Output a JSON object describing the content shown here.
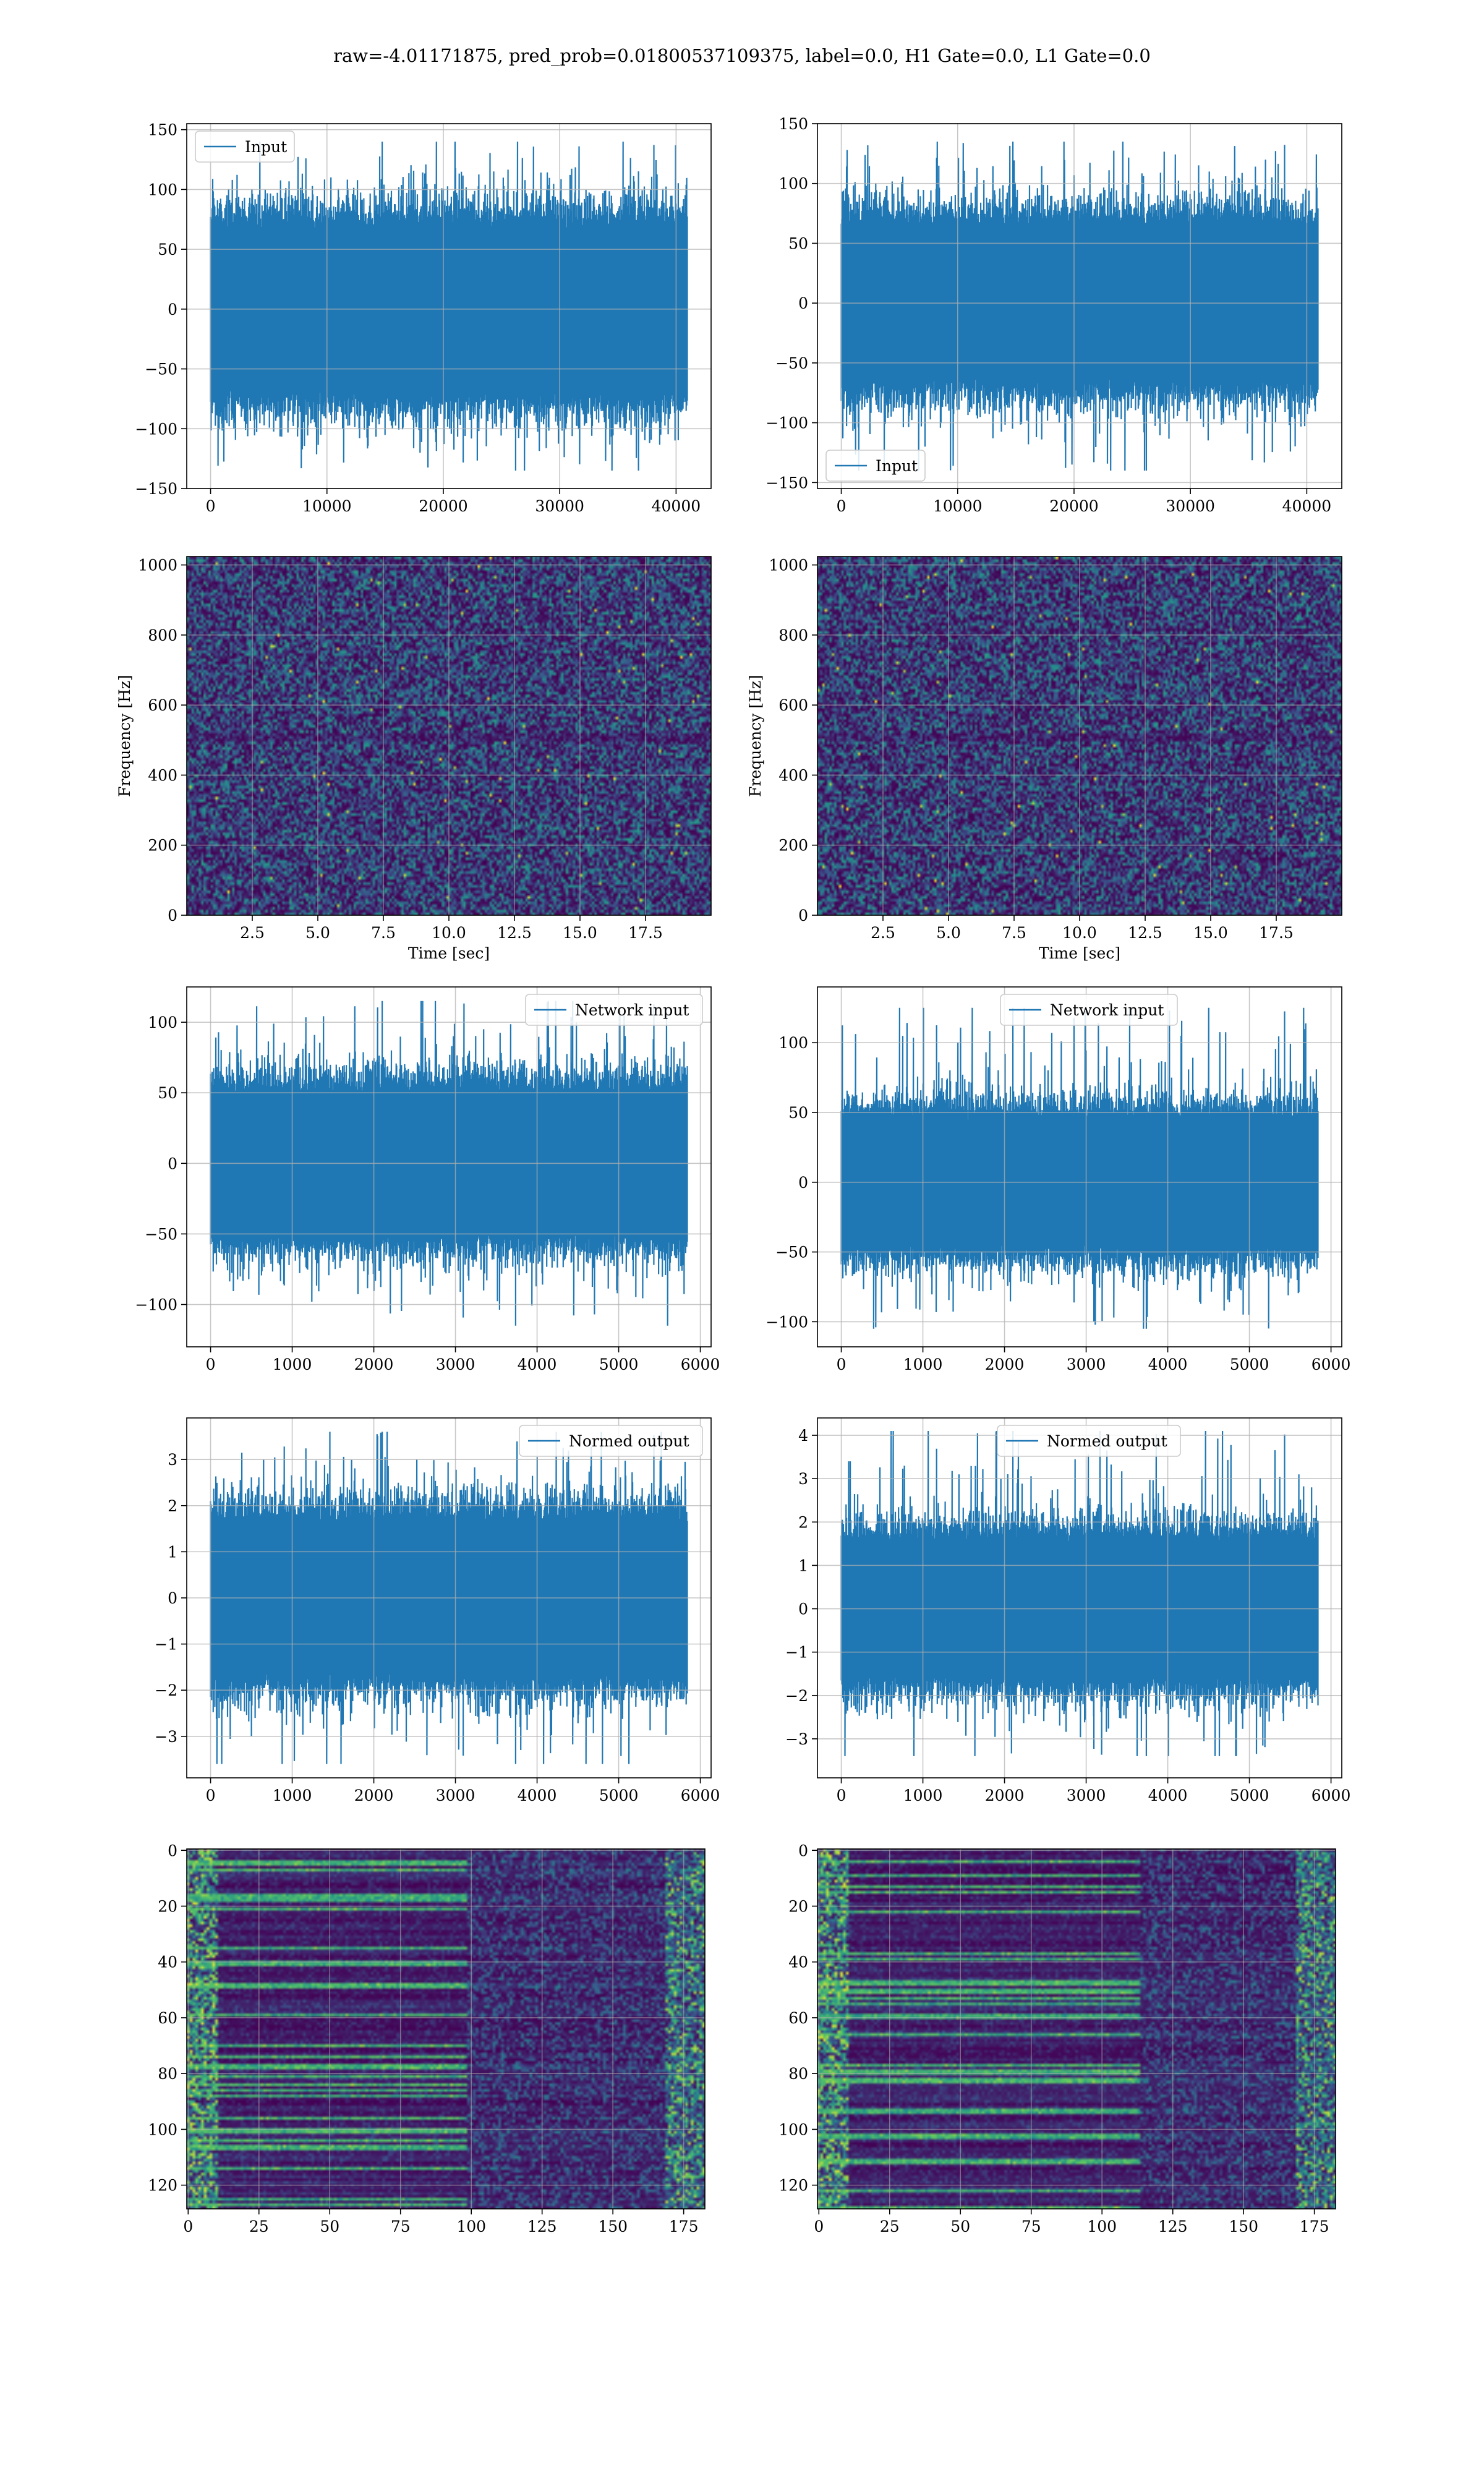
{
  "suptitle": "raw=-4.01171875, pred_prob=0.01800537109375, label=0.0, H1 Gate=0.0, L1 Gate=0.0",
  "colors": {
    "line": "#1f77b4",
    "grid": "#b0b0b0",
    "viridis_low": "#440154",
    "viridis_mid": "#3b528b",
    "viridis_teal": "#21918c",
    "viridis_green": "#5ec962",
    "viridis_high": "#fde725"
  },
  "chart_data": [
    {
      "id": "input-left",
      "type": "line",
      "title": "",
      "xlabel": "",
      "ylabel": "",
      "xlim": [
        -2048,
        43008
      ],
      "ylim": [
        -150,
        155
      ],
      "xticks": [
        0,
        10000,
        20000,
        30000,
        40000
      ],
      "xticklabels": [
        "0",
        "10000",
        "20000",
        "30000",
        "40000"
      ],
      "yticks": [
        -150,
        -100,
        -50,
        0,
        50,
        100,
        150
      ],
      "yticklabels": [
        "−150",
        "−100",
        "−50",
        "0",
        "50",
        "100",
        "150"
      ],
      "grid": true,
      "legend": "upper left",
      "series": [
        {
          "name": "Input",
          "n": 40960,
          "x_range": [
            0,
            40960
          ],
          "envelope_typical": [
            -75,
            75
          ],
          "peaks": [
            -135,
            140
          ]
        }
      ]
    },
    {
      "id": "input-right",
      "type": "line",
      "title": "",
      "xlabel": "",
      "ylabel": "",
      "xlim": [
        -2048,
        43008
      ],
      "ylim": [
        -155,
        150
      ],
      "xticks": [
        0,
        10000,
        20000,
        30000,
        40000
      ],
      "xticklabels": [
        "0",
        "10000",
        "20000",
        "30000",
        "40000"
      ],
      "yticks": [
        -150,
        -100,
        -50,
        0,
        50,
        100,
        150
      ],
      "yticklabels": [
        "−150",
        "−100",
        "−50",
        "0",
        "50",
        "100",
        "150"
      ],
      "grid": true,
      "legend": "lower left",
      "series": [
        {
          "name": "Input",
          "n": 40960,
          "x_range": [
            0,
            40960
          ],
          "envelope_typical": [
            -70,
            70
          ],
          "peaks": [
            -140,
            135
          ]
        }
      ]
    },
    {
      "id": "spectrogram-left",
      "type": "heatmap",
      "title": "",
      "xlabel": "Time [sec]",
      "ylabel": "Frequency [Hz]",
      "xlim": [
        0,
        20
      ],
      "ylim": [
        0,
        1024
      ],
      "xticks": [
        2.5,
        5.0,
        7.5,
        10.0,
        12.5,
        15.0,
        17.5
      ],
      "xticklabels": [
        "2.5",
        "5.0",
        "7.5",
        "10.0",
        "12.5",
        "15.0",
        "17.5"
      ],
      "yticks": [
        0,
        200,
        400,
        600,
        800,
        1000
      ],
      "yticklabels": [
        "0",
        "200",
        "400",
        "600",
        "800",
        "1000"
      ],
      "grid": true,
      "colormap": "viridis"
    },
    {
      "id": "spectrogram-right",
      "type": "heatmap",
      "title": "",
      "xlabel": "Time [sec]",
      "ylabel": "Frequency [Hz]",
      "xlim": [
        0,
        20
      ],
      "ylim": [
        0,
        1024
      ],
      "xticks": [
        2.5,
        5.0,
        7.5,
        10.0,
        12.5,
        15.0,
        17.5
      ],
      "xticklabels": [
        "2.5",
        "5.0",
        "7.5",
        "10.0",
        "12.5",
        "15.0",
        "17.5"
      ],
      "yticks": [
        0,
        200,
        400,
        600,
        800,
        1000
      ],
      "yticklabels": [
        "0",
        "200",
        "400",
        "600",
        "800",
        "1000"
      ],
      "grid": true,
      "colormap": "viridis"
    },
    {
      "id": "network-input-left",
      "type": "line",
      "title": "",
      "xlabel": "",
      "ylabel": "",
      "xlim": [
        -292,
        6132
      ],
      "ylim": [
        -130,
        125
      ],
      "xticks": [
        0,
        1000,
        2000,
        3000,
        4000,
        5000,
        6000
      ],
      "xticklabels": [
        "0",
        "1000",
        "2000",
        "3000",
        "4000",
        "5000",
        "6000"
      ],
      "yticks": [
        -100,
        -50,
        0,
        50,
        100
      ],
      "yticklabels": [
        "−100",
        "−50",
        "0",
        "50",
        "100"
      ],
      "grid": true,
      "legend": "upper right",
      "series": [
        {
          "name": "Network input",
          "n": 5840,
          "x_range": [
            0,
            5840
          ],
          "envelope_typical": [
            -55,
            55
          ],
          "peaks": [
            -115,
            115
          ]
        }
      ]
    },
    {
      "id": "network-input-right",
      "type": "line",
      "title": "",
      "xlabel": "",
      "ylabel": "",
      "xlim": [
        -292,
        6132
      ],
      "ylim": [
        -118,
        140
      ],
      "xticks": [
        0,
        1000,
        2000,
        3000,
        4000,
        5000,
        6000
      ],
      "xticklabels": [
        "0",
        "1000",
        "2000",
        "3000",
        "4000",
        "5000",
        "6000"
      ],
      "yticks": [
        -100,
        -50,
        0,
        50,
        100
      ],
      "yticklabels": [
        "−100",
        "−50",
        "0",
        "50",
        "100"
      ],
      "grid": true,
      "legend": "upper center",
      "series": [
        {
          "name": "Network input",
          "n": 5840,
          "x_range": [
            0,
            5840
          ],
          "envelope_typical": [
            -50,
            50
          ],
          "peaks": [
            -105,
            125
          ]
        }
      ]
    },
    {
      "id": "normed-output-left",
      "type": "line",
      "title": "",
      "xlabel": "",
      "ylabel": "",
      "xlim": [
        -292,
        6132
      ],
      "ylim": [
        -3.9,
        3.9
      ],
      "xticks": [
        0,
        1000,
        2000,
        3000,
        4000,
        5000,
        6000
      ],
      "xticklabels": [
        "0",
        "1000",
        "2000",
        "3000",
        "4000",
        "5000",
        "6000"
      ],
      "yticks": [
        -3,
        -2,
        -1,
        0,
        1,
        2,
        3
      ],
      "yticklabels": [
        "−3",
        "−2",
        "−1",
        "0",
        "1",
        "2",
        "3"
      ],
      "grid": true,
      "legend": "upper right",
      "series": [
        {
          "name": "Normed output",
          "n": 5840,
          "x_range": [
            0,
            5840
          ],
          "envelope_typical": [
            -1.8,
            1.8
          ],
          "peaks": [
            -3.6,
            3.6
          ]
        }
      ]
    },
    {
      "id": "normed-output-right",
      "type": "line",
      "title": "",
      "xlabel": "",
      "ylabel": "",
      "xlim": [
        -292,
        6132
      ],
      "ylim": [
        -3.9,
        4.4
      ],
      "xticks": [
        0,
        1000,
        2000,
        3000,
        4000,
        5000,
        6000
      ],
      "xticklabels": [
        "0",
        "1000",
        "2000",
        "3000",
        "4000",
        "5000",
        "6000"
      ],
      "yticks": [
        -3,
        -2,
        -1,
        0,
        1,
        2,
        3,
        4
      ],
      "yticklabels": [
        "−3",
        "−2",
        "−1",
        "0",
        "1",
        "2",
        "3",
        "4"
      ],
      "grid": true,
      "legend": "upper center",
      "series": [
        {
          "name": "Normed output",
          "n": 5840,
          "x_range": [
            0,
            5840
          ],
          "envelope_typical": [
            -1.7,
            1.7
          ],
          "peaks": [
            -3.4,
            4.1
          ]
        }
      ]
    },
    {
      "id": "feature-map-left",
      "type": "heatmap",
      "title": "",
      "xlabel": "",
      "ylabel": "",
      "xlim": [
        -0.5,
        182.5
      ],
      "ylim": [
        128.5,
        -0.5
      ],
      "xticks": [
        0,
        25,
        50,
        75,
        100,
        125,
        150,
        175
      ],
      "xticklabels": [
        "0",
        "25",
        "50",
        "75",
        "100",
        "125",
        "150",
        "175"
      ],
      "yticks": [
        0,
        20,
        40,
        60,
        80,
        100,
        120
      ],
      "yticklabels": [
        "0",
        "20",
        "40",
        "60",
        "80",
        "100",
        "120"
      ],
      "grid": true,
      "colormap": "viridis",
      "shape": [
        129,
        183
      ]
    },
    {
      "id": "feature-map-right",
      "type": "heatmap",
      "title": "",
      "xlabel": "",
      "ylabel": "",
      "xlim": [
        -0.5,
        182.5
      ],
      "ylim": [
        128.5,
        -0.5
      ],
      "xticks": [
        0,
        25,
        50,
        75,
        100,
        125,
        150,
        175
      ],
      "xticklabels": [
        "0",
        "25",
        "50",
        "75",
        "100",
        "125",
        "150",
        "175"
      ],
      "yticks": [
        0,
        20,
        40,
        60,
        80,
        100,
        120
      ],
      "yticklabels": [
        "0",
        "20",
        "40",
        "60",
        "80",
        "100",
        "120"
      ],
      "grid": true,
      "colormap": "viridis",
      "shape": [
        129,
        183
      ]
    }
  ]
}
